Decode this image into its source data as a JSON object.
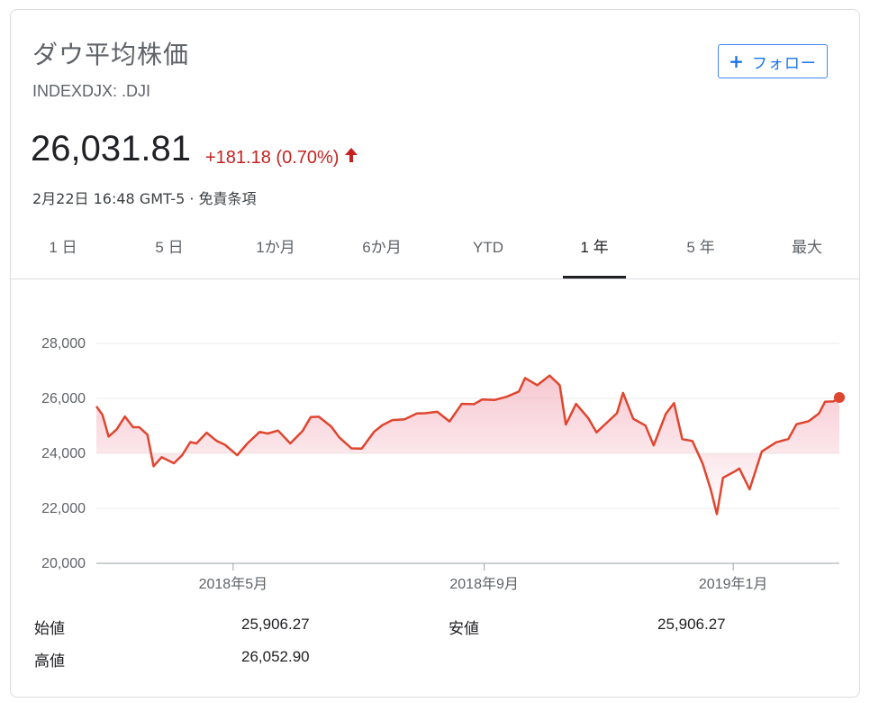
{
  "header": {
    "title": "ダウ平均株価",
    "ticker": "INDEXDJX: .DJI",
    "follow_label": "フォロー",
    "follow_icon": "plus-icon"
  },
  "quote": {
    "price": "26,031.81",
    "change": "+181.18 (0.70%)",
    "change_icon": "arrow-up-icon",
    "meta": "2月22日 16:48 GMT-5 · 免責条項",
    "up_color": "#c5221f"
  },
  "tabs": [
    {
      "label": "1 日",
      "active": false
    },
    {
      "label": "5 日",
      "active": false
    },
    {
      "label": "1か月",
      "active": false
    },
    {
      "label": "6か月",
      "active": false
    },
    {
      "label": "YTD",
      "active": false
    },
    {
      "label": "1 年",
      "active": true
    },
    {
      "label": "5 年",
      "active": false
    },
    {
      "label": "最大",
      "active": false
    }
  ],
  "chart_data": {
    "type": "area",
    "line_color": "#e0452e",
    "fill_color": "#f4b6c2",
    "ylim": [
      20000,
      28000
    ],
    "yticks": [
      "20,000",
      "22,000",
      "24,000",
      "26,000",
      "28,000"
    ],
    "ytick_values": [
      20000,
      22000,
      24000,
      26000,
      28000
    ],
    "xtick_labels": [
      "2018年5月",
      "2018年9月",
      "2019年1月"
    ],
    "xtick_values": [
      "2018-05-01",
      "2018-09-01",
      "2019-01-01"
    ],
    "x_start": "2018-02-23",
    "x_end": "2019-02-22",
    "series": [
      {
        "x": [
          "2018-02-23",
          "2018-02-26",
          "2018-03-01",
          "2018-03-05",
          "2018-03-09",
          "2018-03-13",
          "2018-03-16",
          "2018-03-20",
          "2018-03-23",
          "2018-03-27",
          "2018-04-02",
          "2018-04-06",
          "2018-04-10",
          "2018-04-13",
          "2018-04-18",
          "2018-04-23",
          "2018-04-27",
          "2018-05-03",
          "2018-05-08",
          "2018-05-14",
          "2018-05-18",
          "2018-05-23",
          "2018-05-29",
          "2018-06-04",
          "2018-06-08",
          "2018-06-12",
          "2018-06-18",
          "2018-06-22",
          "2018-06-28",
          "2018-07-03",
          "2018-07-09",
          "2018-07-13",
          "2018-07-18",
          "2018-07-24",
          "2018-07-30",
          "2018-08-03",
          "2018-08-09",
          "2018-08-15",
          "2018-08-21",
          "2018-08-27",
          "2018-08-31",
          "2018-09-06",
          "2018-09-12",
          "2018-09-18",
          "2018-09-21",
          "2018-09-27",
          "2018-10-03",
          "2018-10-08",
          "2018-10-11",
          "2018-10-16",
          "2018-10-22",
          "2018-10-26",
          "2018-10-31",
          "2018-11-05",
          "2018-11-08",
          "2018-11-13",
          "2018-11-19",
          "2018-11-23",
          "2018-11-29",
          "2018-12-03",
          "2018-12-07",
          "2018-12-12",
          "2018-12-17",
          "2018-12-21",
          "2018-12-24",
          "2018-12-27",
          "2019-01-02",
          "2019-01-04",
          "2019-01-09",
          "2019-01-15",
          "2019-01-22",
          "2019-01-28",
          "2019-02-01",
          "2019-02-07",
          "2019-02-12",
          "2019-02-15",
          "2019-02-19",
          "2019-02-22"
        ],
        "values": [
          25710,
          25400,
          24610,
          24880,
          25340,
          24950,
          24950,
          24680,
          23530,
          23860,
          23640,
          23930,
          24410,
          24360,
          24750,
          24450,
          24310,
          23930,
          24360,
          24780,
          24720,
          24830,
          24360,
          24810,
          25320,
          25330,
          24980,
          24580,
          24180,
          24170,
          24780,
          25020,
          25210,
          25240,
          25450,
          25460,
          25510,
          25160,
          25800,
          25790,
          25960,
          25940,
          26060,
          26250,
          26740,
          26480,
          26830,
          26480,
          25050,
          25800,
          25280,
          24760,
          25110,
          25460,
          26200,
          25260,
          25010,
          24290,
          25440,
          25830,
          24520,
          24450,
          23630,
          22680,
          21790,
          23110,
          23350,
          23450,
          22690,
          24070,
          24400,
          24520,
          25060,
          25170,
          25450,
          25880,
          25890,
          26031.81
        ]
      }
    ]
  },
  "stats": {
    "open_label": "始値",
    "open_value": "25,906.27",
    "low_label": "安値",
    "low_value": "25,906.27",
    "high_label": "高値",
    "high_value": "26,052.90"
  }
}
